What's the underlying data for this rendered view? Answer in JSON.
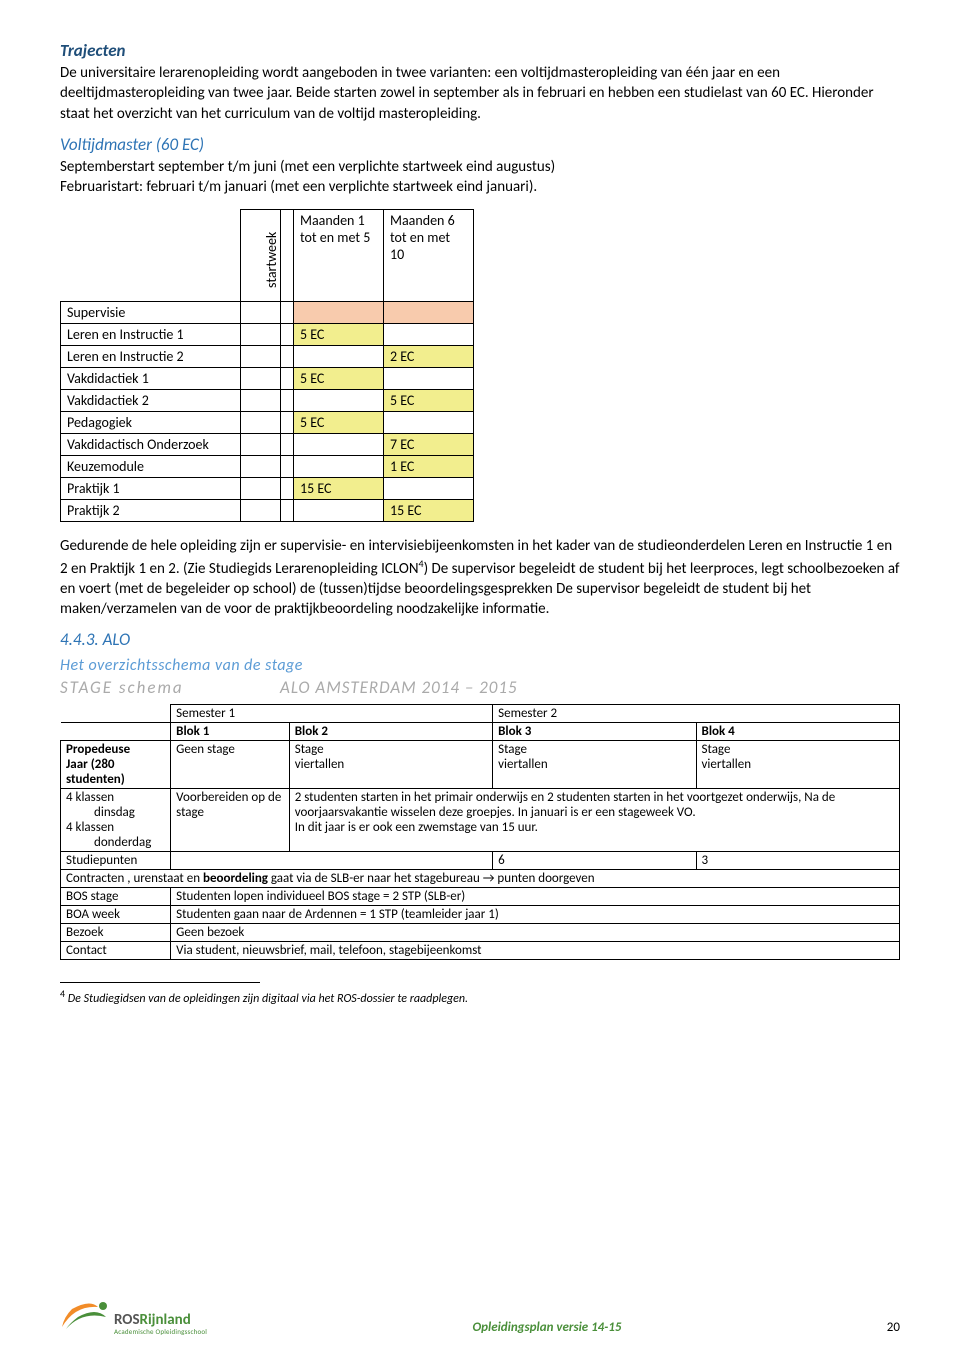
{
  "headings": {
    "trajecten": "Trajecten",
    "voltijd": "Voltijdmaster (60 EC)",
    "alo": "4.4.3. ALO",
    "overzicht": "Het overzichtsschema van de stage"
  },
  "para": {
    "p1": "De universitaire lerarenopleiding wordt aangeboden in twee varianten: een voltijdmasteropleiding van één jaar en een deeltijdmasteropleiding van twee jaar. Beide starten zowel in september als in februari en hebben een studielast van 60 EC. Hieronder staat het overzicht van het curriculum van de voltijd masteropleiding.",
    "p2a": "Septemberstart september t/m juni (met een verplichte startweek eind augustus)",
    "p2b": "Februaristart: februari t/m januari (met een verplichte startweek eind januari).",
    "p3a": "Gedurende de hele opleiding zijn er supervisie- en intervisiebijeenkomsten in het kader van de studieonderdelen Leren en Instructie 1 en 2 en Praktijk 1 en 2. (Zie Studiegids Lerarenopleiding ICLON",
    "p3b": ") De supervisor begeleidt de student bij het leerproces, legt schoolbezoeken af en voert (met de begeleider op school) de (tussen)tijdse beoordelingsgesprekken De supervisor begeleidt de student bij het maken/verzamelen van de voor de praktijkbeoordeling noodzakelijke informatie.",
    "sup4": "4"
  },
  "ec_table": {
    "startweek": "startweek",
    "h2": "Maanden 1 tot en met 5",
    "h3": "Maanden 6 tot en met 10",
    "rows": [
      {
        "label": "Supervisie",
        "c1": "",
        "c2": "",
        "c1_hl": "orange",
        "c2_hl": "orange"
      },
      {
        "label": "Leren en Instructie 1",
        "c1": "5 EC",
        "c2": "",
        "c1_hl": "yellow"
      },
      {
        "label": "Leren en Instructie 2",
        "c1": "",
        "c2": "2 EC",
        "c2_hl": "yellow"
      },
      {
        "label": "Vakdidactiek 1",
        "c1": "5 EC",
        "c2": "",
        "c1_hl": "yellow"
      },
      {
        "label": "Vakdidactiek 2",
        "c1": "",
        "c2": "5 EC",
        "c2_hl": "yellow"
      },
      {
        "label": "Pedagogiek",
        "c1": "5 EC",
        "c2": "",
        "c1_hl": "yellow"
      },
      {
        "label": "Vakdidactisch Onderzoek",
        "c1": "",
        "c2": "7 EC",
        "c2_hl": "yellow"
      },
      {
        "label": "Keuzemodule",
        "c1": "",
        "c2": "1 EC",
        "c2_hl": "yellow"
      },
      {
        "label": "Praktijk 1",
        "c1": "15 EC",
        "c2": "",
        "c1_hl": "yellow"
      },
      {
        "label": "Praktijk 2",
        "c1": "",
        "c2": "15 EC",
        "c2_hl": "yellow"
      }
    ]
  },
  "stage_banner": {
    "left": "STAGE   schema",
    "right": "ALO AMSTERDAM  2014 – 2015"
  },
  "stage": {
    "sem1": "Semester 1",
    "sem2": "Semester 2",
    "blok1": "Blok 1",
    "blok2": "Blok 2",
    "blok3": "Blok 3",
    "blok4": "Blok 4",
    "prop": "Propedeuse",
    "jaar": "Jaar (280 studenten)",
    "geen_stage": "Geen stage",
    "stage": "Stage",
    "viertallen": "viertallen",
    "r4a": "4 klassen",
    "r4b": "dinsdag",
    "r4c": "4 klassen",
    "r4d": "donderdag",
    "voorb": "Voorbereiden op de stage",
    "detail": "2 studenten starten in het primair onderwijs en 2 studenten starten in het voortgezet onderwijs, Na de voorjaarsvakantie wisselen deze groepjes. In januari is er een stageweek VO.\nIn dit jaar is er ook een zwemstage van 15 uur.",
    "stp": "Studiepunten",
    "six": "6",
    "three": "3",
    "contract": "Contracten , urenstaat en ",
    "beoord": "beoordeling",
    "contract2": " gaat via de SLB-er naar het stagebureau → punten doorgeven",
    "bos": "BOS stage",
    "bos_v": "Studenten lopen individueel BOS stage  = 2 STP   (SLB-er)",
    "boa": "BOA week",
    "boa_v": "Studenten gaan naar de Ardennen           = 1 STP   (teamleider jaar 1)",
    "bezoek": "Bezoek",
    "bezoek_v": "Geen bezoek",
    "contact": "Contact",
    "contact_v": "Via student, nieuwsbrief, mail, telefoon, stagebijeenkomst"
  },
  "footnote": {
    "num": "4",
    "text": " De Studiegidsen van de opleidingen zijn digitaal via het ROS-dossier te raadplegen."
  },
  "footer": {
    "center": "Opleidingsplan versie 14-15",
    "page": "20",
    "logo_ros": "ROS",
    "logo_rij": "Rijnland",
    "logo_sub": "Academische Opleidingsschool"
  },
  "colors": {
    "orange": "#f8cbad",
    "yellow": "#f2ee8e"
  }
}
